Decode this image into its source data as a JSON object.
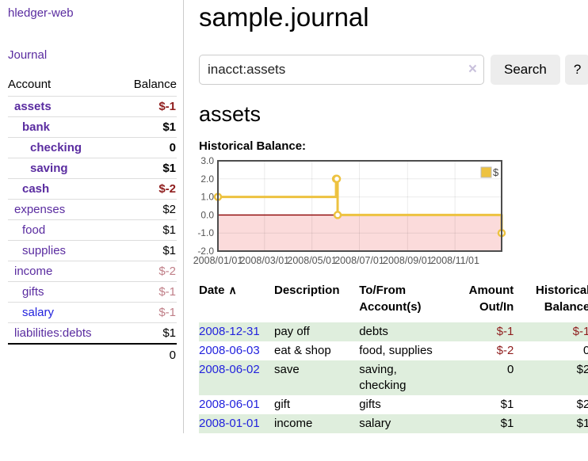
{
  "colors": {
    "link_purple": "#5a2ca0",
    "link_blue": "#2323dd",
    "neg_strong": "#8f1d1d",
    "neg_muted": "#c07f88",
    "row_green": "#dfeedd",
    "button_bg": "#ededed"
  },
  "sidebar": {
    "brand": "hledger-web",
    "journal_link": "Journal",
    "accounts_table": {
      "headers": {
        "account": "Account",
        "balance": "Balance"
      },
      "rows": [
        {
          "name": "assets",
          "balance": "$-1",
          "level": 1,
          "bold": true,
          "neg": "strong"
        },
        {
          "name": "bank",
          "balance": "$1",
          "level": 2,
          "bold": true
        },
        {
          "name": "checking",
          "balance": "0",
          "level": 3,
          "bold": true
        },
        {
          "name": "saving",
          "balance": "$1",
          "level": 3,
          "bold": true
        },
        {
          "name": "cash",
          "balance": "$-2",
          "level": 2,
          "bold": true,
          "neg": "strong"
        },
        {
          "name": "expenses",
          "balance": "$2",
          "level": 1
        },
        {
          "name": "food",
          "balance": "$1",
          "level": 2
        },
        {
          "name": "supplies",
          "balance": "$1",
          "level": 2
        },
        {
          "name": "income",
          "balance": "$-2",
          "level": 1,
          "neg": "muted"
        },
        {
          "name": "gifts",
          "balance": "$-1",
          "level": 2,
          "neg": "muted"
        },
        {
          "name": "salary",
          "balance": "$-1",
          "level": 2,
          "neg": "muted",
          "link": "blue"
        },
        {
          "name": "liabilities:debts",
          "balance": "$1",
          "level": 1
        }
      ],
      "total": "0"
    }
  },
  "main": {
    "title": "sample.journal",
    "search": {
      "value": "inacct:assets",
      "clear_icon": "×",
      "button_label": "Search",
      "help_label": "?"
    },
    "account_heading": "assets",
    "chart_label": "Historical Balance:",
    "register_table": {
      "columns": [
        {
          "label_lines": [
            "Date"
          ],
          "sort_icon": "∧",
          "align": "left"
        },
        {
          "label_lines": [
            "Description"
          ],
          "align": "left"
        },
        {
          "label_lines": [
            "To/From",
            "Account(s)"
          ],
          "align": "left"
        },
        {
          "label_lines": [
            "Amount",
            "Out/In"
          ],
          "align": "right"
        },
        {
          "label_lines": [
            "Historical",
            "Balance"
          ],
          "align": "right"
        }
      ],
      "rows": [
        {
          "date": "2008-12-31",
          "description": "pay off",
          "account_lines": [
            "debts"
          ],
          "amount": "$-1",
          "amount_neg": true,
          "balance": "$-1",
          "balance_neg": true
        },
        {
          "date": "2008-06-03",
          "description": "eat & shop",
          "account_lines": [
            "food, supplies"
          ],
          "amount": "$-2",
          "amount_neg": true,
          "balance": "0"
        },
        {
          "date": "2008-06-02",
          "description": "save",
          "account_lines": [
            "saving,",
            "checking"
          ],
          "amount": "0",
          "balance": "$2"
        },
        {
          "date": "2008-06-01",
          "description": "gift",
          "account_lines": [
            "gifts"
          ],
          "amount": "$1",
          "balance": "$2"
        },
        {
          "date": "2008-01-01",
          "description": "income",
          "account_lines": [
            "salary"
          ],
          "amount": "$1",
          "balance": "$1"
        }
      ]
    }
  },
  "chart_data": {
    "type": "line",
    "step": true,
    "title": "Historical Balance:",
    "xlim": [
      "2008-01-01",
      "2008-12-31"
    ],
    "ylim": [
      -2,
      3
    ],
    "grid": true,
    "legend_position": "top-right",
    "series": [
      {
        "name": "$",
        "points": [
          [
            "2008-01-01",
            1
          ],
          [
            "2008-06-01",
            2
          ],
          [
            "2008-06-02",
            2
          ],
          [
            "2008-06-03",
            0
          ],
          [
            "2008-12-31",
            -1
          ]
        ]
      }
    ],
    "yticks": [
      {
        "v": 3,
        "label": "3.0"
      },
      {
        "v": 2,
        "label": "2.0"
      },
      {
        "v": 1,
        "label": "1.0"
      },
      {
        "v": 0,
        "label": "0.0"
      },
      {
        "v": -1,
        "label": "-1.0"
      },
      {
        "v": -2,
        "label": "-2.0"
      }
    ],
    "xticks": [
      {
        "date": "2008-01-01",
        "label": "2008/01/01"
      },
      {
        "date": "2008-03-01",
        "label": "2008/03/01"
      },
      {
        "date": "2008-05-01",
        "label": "2008/05/01"
      },
      {
        "date": "2008-07-01",
        "label": "2008/07/01"
      },
      {
        "date": "2008-09-01",
        "label": "2008/09/01"
      },
      {
        "date": "2008-11-01",
        "label": "2008/11/01"
      }
    ],
    "colors": {
      "line": "#EDC240",
      "below_zero_fill": "#fbdbdb",
      "zero_line": "#8b0000",
      "border": "#4d4d4d",
      "tick_text": "#545454"
    }
  }
}
